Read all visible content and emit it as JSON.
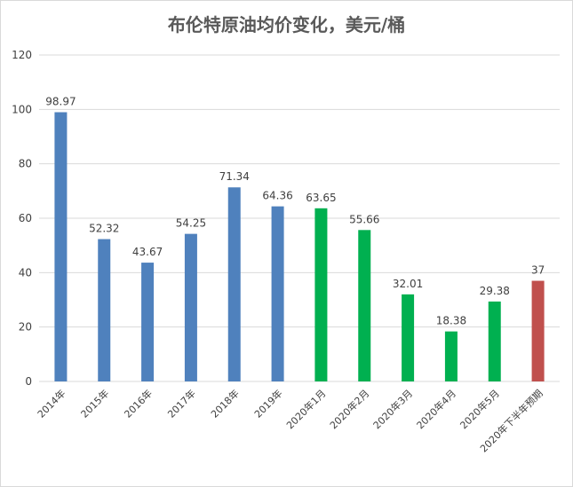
{
  "chart_data": {
    "type": "bar",
    "title": "布伦特原油均价变化，美元/桶",
    "xlabel": "",
    "ylabel": "",
    "ylim": [
      0,
      120
    ],
    "yticks": [
      0,
      20,
      40,
      60,
      80,
      100,
      120
    ],
    "grid": true,
    "legend": "none",
    "categories": [
      "2014年",
      "2015年",
      "2016年",
      "2017年",
      "2018年",
      "2019年",
      "2020年1月",
      "2020年2月",
      "2020年3月",
      "2020年4月",
      "2020年5月",
      "2020年下半年预期"
    ],
    "values": [
      98.97,
      52.32,
      43.67,
      54.25,
      71.34,
      64.36,
      63.65,
      55.66,
      32.01,
      18.38,
      29.38,
      37
    ],
    "data_labels": [
      "98.97",
      "52.32",
      "43.67",
      "54.25",
      "71.34",
      "64.36",
      "63.65",
      "55.66",
      "32.01",
      "18.38",
      "29.38",
      "37"
    ],
    "bar_colors": [
      "#4f81bd",
      "#4f81bd",
      "#4f81bd",
      "#4f81bd",
      "#4f81bd",
      "#4f81bd",
      "#00b050",
      "#00b050",
      "#00b050",
      "#00b050",
      "#00b050",
      "#c0504d"
    ]
  },
  "colors": {
    "grid": "#d9d9d9",
    "text": "#404040",
    "title": "#595959"
  }
}
